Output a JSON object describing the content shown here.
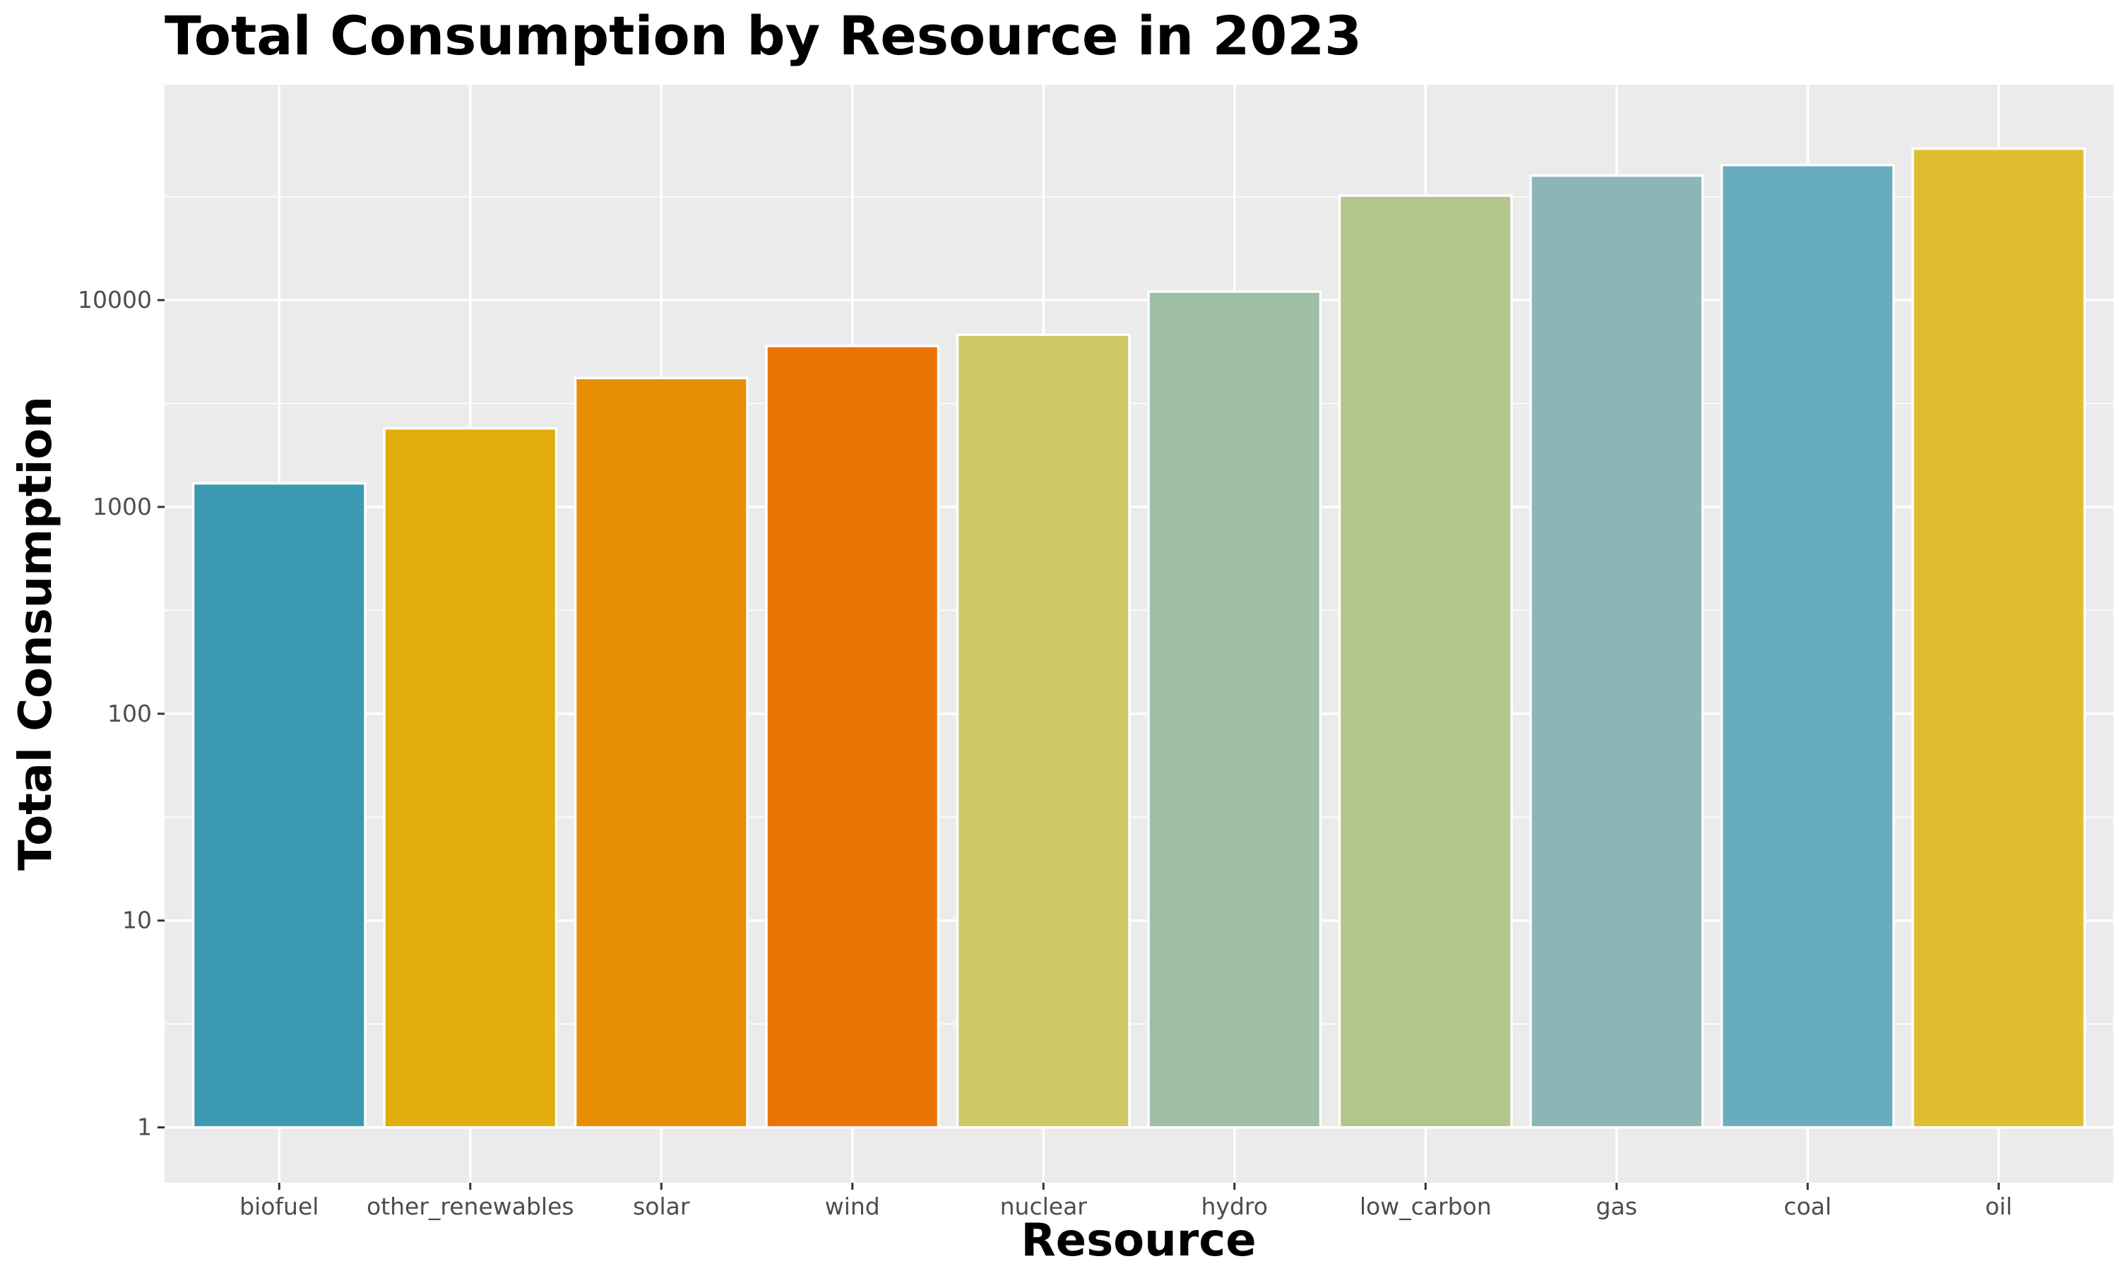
{
  "chart_data": {
    "type": "bar",
    "title": "Total Consumption by Resource in 2023",
    "xlabel": "Resource",
    "ylabel": "Total Consumption",
    "yscale": "log",
    "ylim": [
      0.54,
      110000
    ],
    "yticks": [
      1,
      10,
      100,
      1000,
      10000
    ],
    "ytick_labels": [
      "1",
      "10",
      "100",
      "1000",
      "10000"
    ],
    "grid": true,
    "legend": "none",
    "categories": [
      "biofuel",
      "other_renewables",
      "solar",
      "wind",
      "nuclear",
      "hydro",
      "low_carbon",
      "gas",
      "coal",
      "oil"
    ],
    "values": [
      1300,
      2400,
      4200,
      6000,
      6800,
      11000,
      32000,
      40000,
      45000,
      54000
    ],
    "colors": [
      "#3c99b2",
      "#e2ac0e",
      "#e88e05",
      "#eb7205",
      "#ccc865",
      "#9ebea5",
      "#b3c48d",
      "#8bb5b6",
      "#68adbe",
      "#dfbf31"
    ],
    "panel_color": "#ebebeb",
    "grid_color": "#ffffff"
  }
}
